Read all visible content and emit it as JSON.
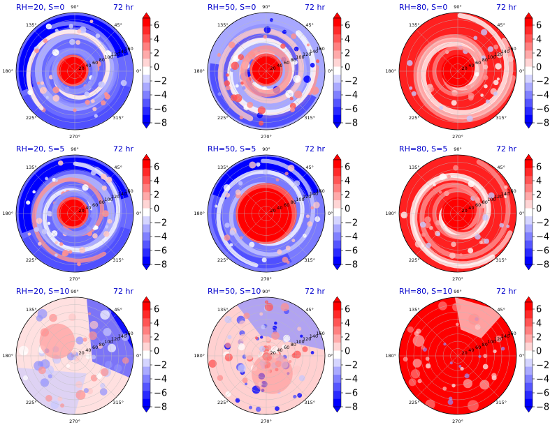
{
  "figure": {
    "type": "polar-contour-grid",
    "colorbar": {
      "ticks": [
        "6",
        "4",
        "2",
        "0",
        "−2",
        "−4",
        "−6",
        "−8"
      ],
      "colors": [
        "#0000ff",
        "#2a2aff",
        "#5555ff",
        "#8080ff",
        "#aaaaff",
        "#d5d5ff",
        "#ffffff",
        "#ffd5d5",
        "#ffaaaa",
        "#ff8080",
        "#ff5555",
        "#ff2a2a",
        "#ff0000"
      ]
    },
    "angle_labels": [
      "90°",
      "45°",
      "0°",
      "315°",
      "270°",
      "225°",
      "180°",
      "135°"
    ],
    "radial_labels": [
      "20",
      "40",
      "60",
      "80",
      "100",
      "120",
      "140",
      "160"
    ]
  },
  "chart_data": [
    {
      "type": "heatmap",
      "title": "RH=20, S=0",
      "time": "72 hr",
      "pattern": "red-core-blue-outer"
    },
    {
      "type": "heatmap",
      "title": "RH=50, S=0",
      "time": "72 hr",
      "pattern": "red-core-mixed-outer"
    },
    {
      "type": "heatmap",
      "title": "RH=80, S=0",
      "time": "72 hr",
      "pattern": "mostly-red"
    },
    {
      "type": "heatmap",
      "title": "RH=20, S=5",
      "time": "72 hr",
      "pattern": "red-core-blue-outer"
    },
    {
      "type": "heatmap",
      "title": "RH=50, S=5",
      "time": "72 hr",
      "pattern": "red-core-blue-north"
    },
    {
      "type": "heatmap",
      "title": "RH=80, S=5",
      "time": "72 hr",
      "pattern": "mostly-red"
    },
    {
      "type": "heatmap",
      "title": "RH=20, S=10",
      "time": "72 hr",
      "pattern": "light-mixed-blue-east"
    },
    {
      "type": "heatmap",
      "title": "RH=50, S=10",
      "time": "72 hr",
      "pattern": "mixed-blue-north"
    },
    {
      "type": "heatmap",
      "title": "RH=80, S=10",
      "time": "72 hr",
      "pattern": "solid-red"
    }
  ]
}
